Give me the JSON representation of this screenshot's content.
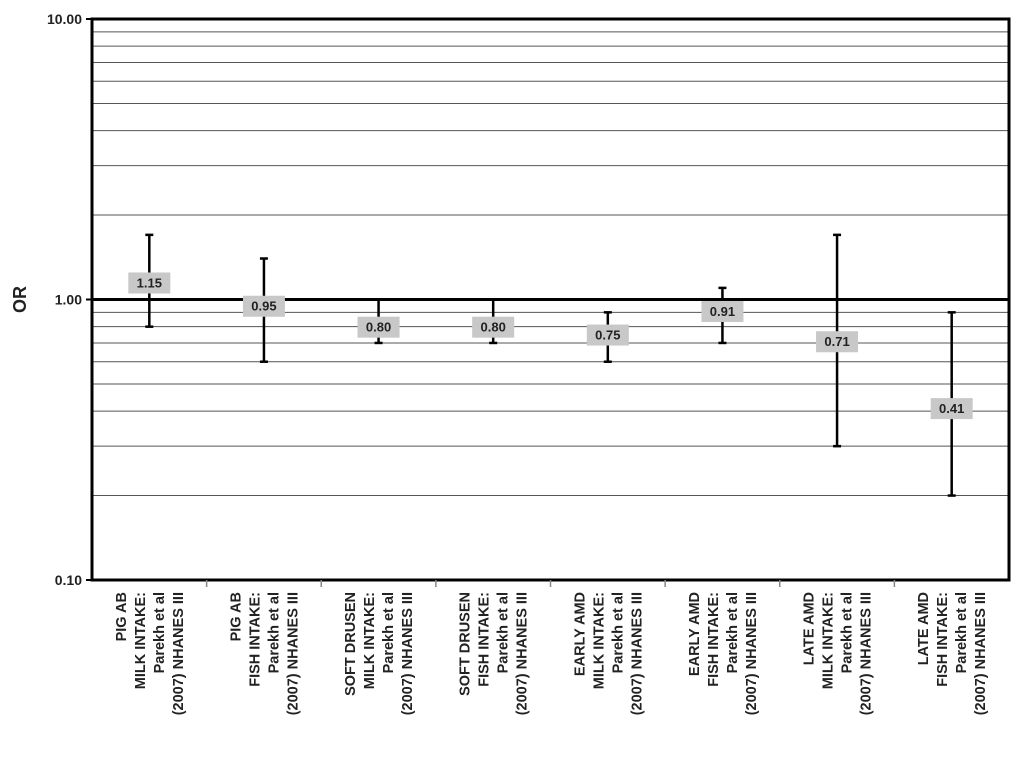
{
  "chart_data": {
    "type": "scatter",
    "ylabel": "OR",
    "yscale": "log",
    "ylim": [
      0.1,
      10
    ],
    "y_tick_labels": [
      "0.10",
      "1.00",
      "10.00"
    ],
    "reference_line": 1.0,
    "grid": true,
    "categories": [
      [
        "PIG AB",
        "MILK INTAKE:",
        "Parekh et al",
        "(2007) NHANES III"
      ],
      [
        "PIG AB",
        "FISH INTAKE:",
        "Parekh et al",
        "(2007) NHANES III"
      ],
      [
        "SOFT DRUSEN",
        "MILK INTAKE:",
        "Parekh et al",
        "(2007) NHANES III"
      ],
      [
        "SOFT DRUSEN",
        "FISH INTAKE:",
        "Parekh et al",
        "(2007) NHANES III"
      ],
      [
        "EARLY AMD",
        "MILK INTAKE:",
        "Parekh et al",
        "(2007) NHANES III"
      ],
      [
        "EARLY AMD",
        "FISH INTAKE:",
        "Parekh et al",
        "(2007) NHANES III"
      ],
      [
        "LATE AMD",
        "MILK INTAKE:",
        "Parekh et al",
        "(2007) NHANES III"
      ],
      [
        "LATE AMD",
        "FISH INTAKE:",
        "Parekh et al",
        "(2007) NHANES III"
      ]
    ],
    "values": [
      1.15,
      0.95,
      0.8,
      0.8,
      0.75,
      0.91,
      0.71,
      0.41
    ],
    "value_labels": [
      "1.15",
      "0.95",
      "0.80",
      "0.80",
      "0.75",
      "0.91",
      "0.71",
      "0.41"
    ],
    "lower": [
      0.8,
      0.6,
      0.7,
      0.7,
      0.6,
      0.7,
      0.3,
      0.2
    ],
    "upper": [
      1.7,
      1.4,
      1.0,
      1.0,
      0.9,
      1.1,
      1.7,
      0.9
    ]
  }
}
